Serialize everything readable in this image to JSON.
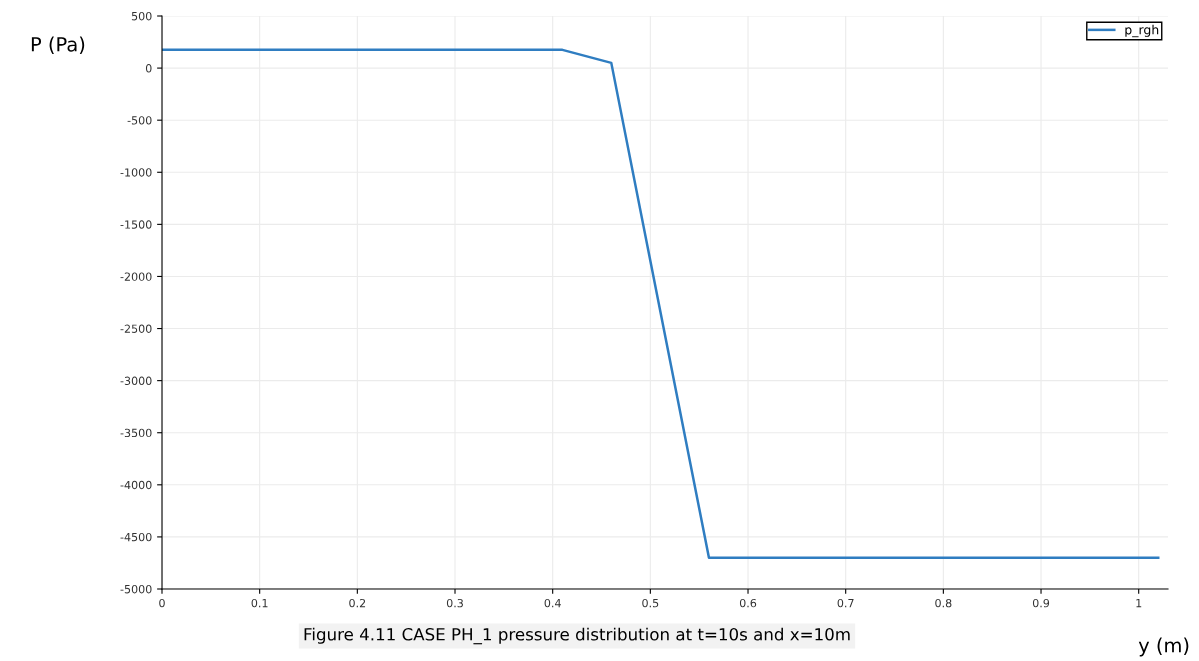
{
  "chart_data": {
    "type": "line",
    "xlabel": "y (m)",
    "ylabel": "P (Pa)",
    "x": [
      0,
      0.41,
      0.46,
      0.56,
      1.02
    ],
    "series": [
      {
        "name": "p_rgh",
        "color": "#2f7dc1",
        "values": [
          175,
          175,
          50,
          -4700,
          -4700
        ]
      }
    ],
    "xlim": [
      0,
      1.03
    ],
    "xticks": [
      0,
      0.1,
      0.2,
      0.3,
      0.4,
      0.5,
      0.6,
      0.7,
      0.8,
      0.9,
      1
    ],
    "ylim": [
      -5000,
      500
    ],
    "yticks": [
      -5000,
      -4500,
      -4000,
      -3500,
      -3000,
      -2500,
      -2000,
      -1500,
      -1000,
      -500,
      0,
      500
    ],
    "grid": true,
    "legend": "top right",
    "annotations": [
      "Figure 4.11 CASE PH_1 pressure distribution at t=10s and x=10m"
    ]
  }
}
